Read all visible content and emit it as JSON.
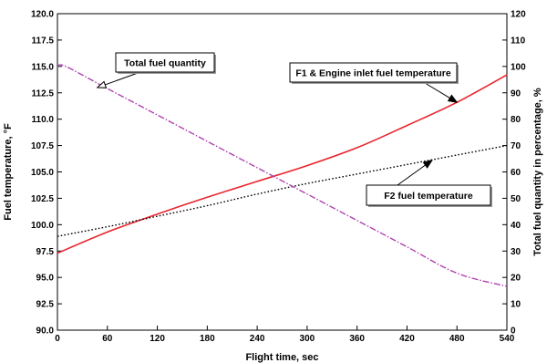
{
  "chart_data": {
    "type": "line",
    "title": "",
    "xlabel": "Flight time, sec",
    "ylabel": "Fuel temperature, °F",
    "y2label": "Total fuel quantity in percentage, %",
    "xlim": [
      0,
      540
    ],
    "ylim": [
      90.0,
      120.0
    ],
    "y2lim": [
      0,
      120
    ],
    "x_ticks": [
      "0",
      "60",
      "120",
      "180",
      "240",
      "300",
      "360",
      "420",
      "480",
      "540"
    ],
    "y_ticks": [
      "90.0",
      "92.5",
      "95.0",
      "97.5",
      "100.0",
      "102.5",
      "105.0",
      "107.5",
      "110.0",
      "112.5",
      "115.0",
      "117.5",
      "120.0"
    ],
    "y2_ticks": [
      "0",
      "10",
      "20",
      "30",
      "40",
      "50",
      "60",
      "70",
      "80",
      "90",
      "100",
      "110",
      "120"
    ],
    "grid": false,
    "series": [
      {
        "name": "F1 & Engine inlet fuel temperature",
        "axis": "left",
        "color": "#e8242c",
        "style": "solid",
        "x": [
          0,
          60,
          120,
          180,
          240,
          300,
          360,
          420,
          480,
          540
        ],
        "y": [
          97.3,
          99.3,
          101.0,
          102.6,
          104.1,
          105.6,
          107.3,
          109.4,
          111.6,
          114.2
        ]
      },
      {
        "name": "F2 fuel temperature",
        "axis": "left",
        "color": "#000000",
        "style": "dotted",
        "x": [
          0,
          60,
          120,
          180,
          240,
          300,
          360,
          420,
          480,
          540
        ],
        "y": [
          98.9,
          99.8,
          100.8,
          101.8,
          102.9,
          103.9,
          104.8,
          105.7,
          106.6,
          107.5
        ]
      },
      {
        "name": "Total fuel quantity",
        "axis": "right",
        "color": "#b040b0",
        "style": "dashdot",
        "x": [
          0,
          10,
          60,
          120,
          180,
          240,
          300,
          360,
          420,
          480,
          540
        ],
        "y": [
          100,
          100,
          91.6,
          81.6,
          71.6,
          61.6,
          51.6,
          41.6,
          31.6,
          21.6,
          16.6
        ]
      }
    ],
    "annotations": [
      {
        "text": "Total fuel quantity",
        "series": 2,
        "target": [
          48,
          92
        ],
        "box": true
      },
      {
        "text": "F1 & Engine inlet fuel temperature",
        "series": 0,
        "target": [
          480,
          111.6
        ],
        "box": true
      },
      {
        "text": "F2 fuel temperature",
        "series": 1,
        "target": [
          450,
          106.1
        ],
        "box": true
      }
    ]
  }
}
